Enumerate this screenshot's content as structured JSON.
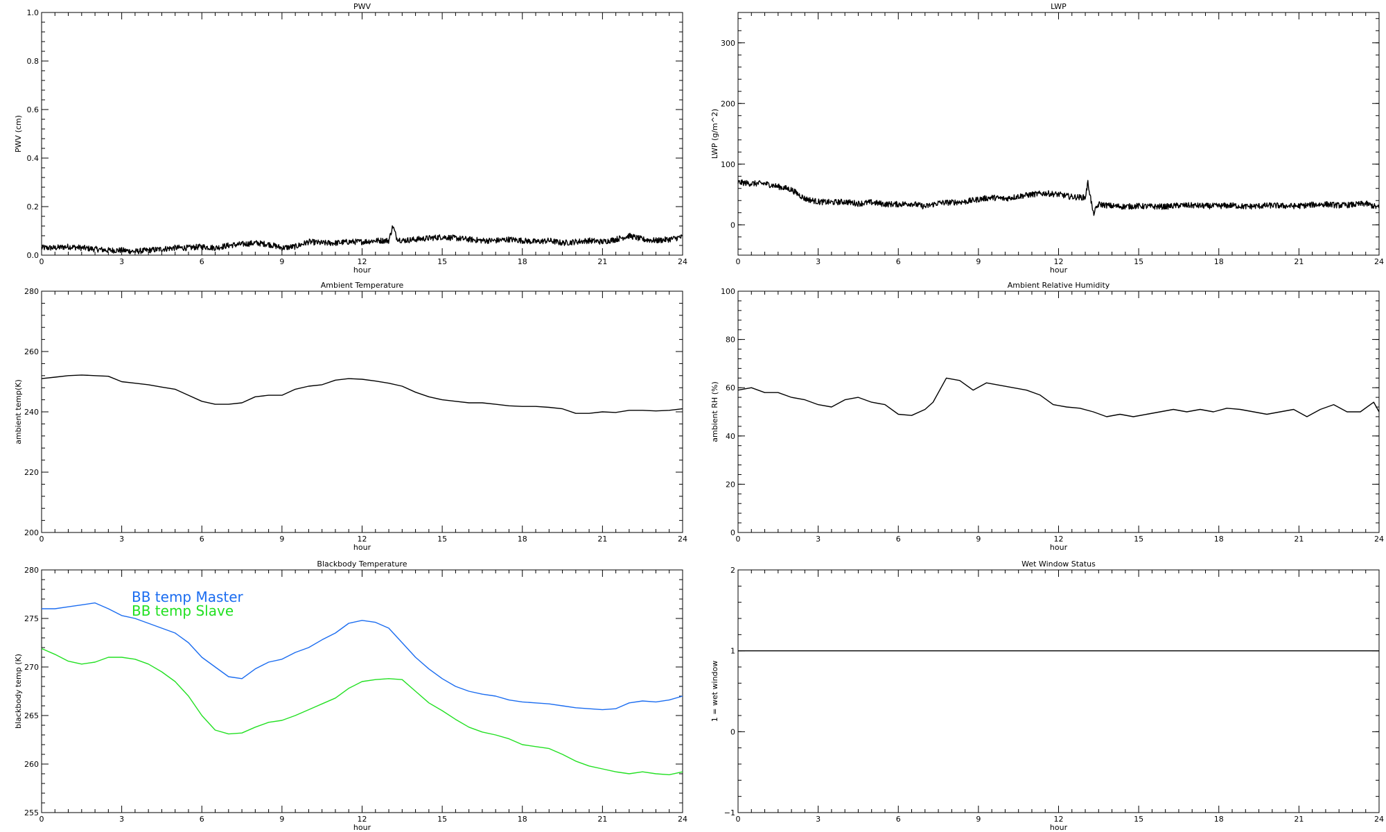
{
  "chart_data": [
    {
      "id": "pwv",
      "type": "line",
      "title": "PWV",
      "xlabel": "hour",
      "ylabel": "PWV (cm)",
      "xlim": [
        0,
        24
      ],
      "ylim": [
        0,
        1
      ],
      "xticks": [
        "0",
        "3",
        "6",
        "9",
        "12",
        "15",
        "18",
        "21",
        "24"
      ],
      "yticks": [
        "0.0",
        "0.2",
        "0.4",
        "0.6",
        "0.8",
        "1.0"
      ],
      "series": [
        {
          "color": "#000000",
          "noisy": true,
          "x": [
            0,
            0.5,
            1,
            1.5,
            2,
            2.5,
            3,
            3.5,
            4,
            4.5,
            5,
            5.5,
            6,
            6.5,
            7,
            7.5,
            8,
            8.5,
            9,
            9.5,
            10,
            10.5,
            11,
            11.5,
            12,
            12.5,
            13,
            13.15,
            13.3,
            13.5,
            14,
            14.5,
            15,
            15.5,
            16,
            16.5,
            17,
            17.5,
            18,
            18.5,
            19,
            19.5,
            20,
            20.5,
            21,
            21.5,
            22,
            22.5,
            23,
            23.5,
            24
          ],
          "y": [
            0.03,
            0.03,
            0.035,
            0.03,
            0.025,
            0.02,
            0.02,
            0.015,
            0.02,
            0.025,
            0.03,
            0.03,
            0.035,
            0.03,
            0.04,
            0.045,
            0.05,
            0.045,
            0.03,
            0.035,
            0.055,
            0.05,
            0.05,
            0.055,
            0.055,
            0.06,
            0.06,
            0.12,
            0.07,
            0.06,
            0.065,
            0.07,
            0.075,
            0.07,
            0.065,
            0.06,
            0.06,
            0.065,
            0.06,
            0.055,
            0.06,
            0.05,
            0.055,
            0.06,
            0.055,
            0.065,
            0.08,
            0.065,
            0.06,
            0.065,
            0.075
          ]
        }
      ]
    },
    {
      "id": "lwp",
      "type": "line",
      "title": "LWP",
      "xlabel": "hour",
      "ylabel": "LWP (g/m^2)",
      "xlim": [
        0,
        24
      ],
      "ylim": [
        -50,
        350
      ],
      "xticks": [
        "0",
        "3",
        "6",
        "9",
        "12",
        "15",
        "18",
        "21",
        "24"
      ],
      "yticks": [
        "0",
        "100",
        "200",
        "300"
      ],
      "series": [
        {
          "color": "#000000",
          "noisy": true,
          "x": [
            0,
            0.5,
            1,
            1.5,
            2,
            2.5,
            3,
            3.5,
            4,
            4.5,
            5,
            5.5,
            6,
            6.5,
            7,
            7.5,
            8,
            8.5,
            9,
            9.5,
            10,
            10.5,
            11,
            11.5,
            12,
            12.5,
            13,
            13.1,
            13.3,
            13.5,
            14,
            14.5,
            15,
            15.5,
            16,
            16.5,
            17,
            17.5,
            18,
            18.5,
            19,
            19.5,
            20,
            20.5,
            21,
            21.5,
            22,
            22.5,
            23,
            23.5,
            24
          ],
          "y": [
            70,
            68,
            68,
            63,
            58,
            43,
            38,
            37,
            38,
            35,
            37,
            34,
            34,
            35,
            30,
            36,
            37,
            38,
            42,
            45,
            43,
            47,
            50,
            52,
            50,
            46,
            45,
            70,
            18,
            34,
            31,
            30,
            31,
            30,
            30,
            32,
            32,
            31,
            31,
            32,
            30,
            31,
            32,
            31,
            31,
            33,
            34,
            32,
            33,
            35,
            28
          ]
        }
      ]
    },
    {
      "id": "tamb",
      "type": "line",
      "title": "Ambient Temperature",
      "xlabel": "hour",
      "ylabel": "ambient temp(K)",
      "xlim": [
        0,
        24
      ],
      "ylim": [
        200,
        280
      ],
      "xticks": [
        "0",
        "3",
        "6",
        "9",
        "12",
        "15",
        "18",
        "21",
        "24"
      ],
      "yticks": [
        "200",
        "220",
        "240",
        "260",
        "280"
      ],
      "series": [
        {
          "color": "#000000",
          "noisy": false,
          "x": [
            0,
            0.5,
            1,
            1.5,
            2,
            2.5,
            3,
            3.5,
            4,
            4.5,
            5,
            5.5,
            6,
            6.5,
            7,
            7.5,
            8,
            8.5,
            9,
            9.5,
            10,
            10.5,
            11,
            11.5,
            12,
            12.5,
            13,
            13.5,
            14,
            14.5,
            15,
            15.5,
            16,
            16.5,
            17,
            17.5,
            18,
            18.5,
            19,
            19.5,
            20,
            20.5,
            21,
            21.5,
            22,
            22.5,
            23,
            23.5,
            24
          ],
          "y": [
            251,
            251.5,
            252,
            252.2,
            252,
            251.8,
            250,
            249.5,
            249,
            248.2,
            247.5,
            245.5,
            243.5,
            242.5,
            242.5,
            243,
            245,
            245.5,
            245.5,
            247.5,
            248.5,
            249,
            250.5,
            251,
            250.8,
            250.2,
            249.5,
            248.5,
            246.5,
            245,
            244,
            243.5,
            243,
            243,
            242.5,
            242,
            241.8,
            241.8,
            241.5,
            241,
            239.5,
            239.5,
            240,
            239.8,
            240.5,
            240.5,
            240.3,
            240.5,
            241
          ]
        }
      ]
    },
    {
      "id": "rh",
      "type": "line",
      "title": "Ambient Relative Humidity",
      "xlabel": "hour",
      "ylabel": "ambient RH (%)",
      "xlim": [
        0,
        24
      ],
      "ylim": [
        0,
        100
      ],
      "xticks": [
        "0",
        "3",
        "6",
        "9",
        "12",
        "15",
        "18",
        "21",
        "24"
      ],
      "yticks": [
        "0",
        "20",
        "40",
        "60",
        "80",
        "100"
      ],
      "series": [
        {
          "color": "#000000",
          "noisy": false,
          "x": [
            0,
            0.5,
            1,
            1.5,
            2,
            2.5,
            3,
            3.5,
            4,
            4.5,
            5,
            5.5,
            6,
            6.5,
            7,
            7.3,
            7.8,
            8.3,
            8.8,
            9.3,
            9.8,
            10.3,
            10.8,
            11.3,
            11.8,
            12.3,
            12.8,
            13.3,
            13.8,
            14.3,
            14.8,
            15.3,
            15.8,
            16.3,
            16.8,
            17.3,
            17.8,
            18.3,
            18.8,
            19.3,
            19.8,
            20.3,
            20.8,
            21.3,
            21.8,
            22.3,
            22.8,
            23.3,
            23.8,
            24
          ],
          "y": [
            59,
            60,
            58,
            58,
            56,
            55,
            53,
            52,
            55,
            56,
            54,
            53,
            49,
            48.5,
            51,
            54,
            64,
            63,
            59,
            62,
            61,
            60,
            59,
            57,
            53,
            52,
            51.5,
            50,
            48,
            49,
            48,
            49,
            50,
            51,
            50,
            51,
            50,
            51.5,
            51,
            50,
            49,
            50,
            51,
            48,
            51,
            53,
            50,
            50,
            54,
            50
          ]
        }
      ]
    },
    {
      "id": "bb",
      "type": "line",
      "title": "Blackbody Temperature",
      "xlabel": "hour",
      "ylabel": "blackbody temp (K)",
      "xlim": [
        0,
        24
      ],
      "ylim": [
        255,
        280
      ],
      "xticks": [
        "0",
        "3",
        "6",
        "9",
        "12",
        "15",
        "18",
        "21",
        "24"
      ],
      "yticks": [
        "255",
        "260",
        "265",
        "270",
        "275",
        "280"
      ],
      "series": [
        {
          "name": "BB temp Master",
          "color": "#1a6cf0",
          "noisy": false,
          "x": [
            0,
            0.5,
            1,
            1.5,
            2,
            2.5,
            3,
            3.5,
            4,
            4.5,
            5,
            5.5,
            6,
            6.5,
            7,
            7.5,
            8,
            8.5,
            9,
            9.5,
            10,
            10.5,
            11,
            11.5,
            12,
            12.5,
            13,
            13.5,
            14,
            14.5,
            15,
            15.5,
            16,
            16.5,
            17,
            17.5,
            18,
            18.5,
            19,
            19.5,
            20,
            20.5,
            21,
            21.5,
            22,
            22.5,
            23,
            23.5,
            24
          ],
          "y": [
            276,
            276,
            276.2,
            276.4,
            276.6,
            276,
            275.3,
            275,
            274.5,
            274,
            273.5,
            272.5,
            271,
            270,
            269,
            268.8,
            269.8,
            270.5,
            270.8,
            271.5,
            272,
            272.8,
            273.5,
            274.5,
            274.8,
            274.6,
            274,
            272.5,
            271,
            269.8,
            268.8,
            268,
            267.5,
            267.2,
            267,
            266.6,
            266.4,
            266.3,
            266.2,
            266,
            265.8,
            265.7,
            265.6,
            265.7,
            266.3,
            266.5,
            266.4,
            266.6,
            267
          ]
        },
        {
          "name": "BB temp Slave",
          "color": "#22e022",
          "noisy": false,
          "x": [
            0,
            0.5,
            1,
            1.5,
            2,
            2.5,
            3,
            3.5,
            4,
            4.5,
            5,
            5.5,
            6,
            6.5,
            7,
            7.5,
            8,
            8.5,
            9,
            9.5,
            10,
            10.5,
            11,
            11.5,
            12,
            12.5,
            13,
            13.5,
            14,
            14.5,
            15,
            15.5,
            16,
            16.5,
            17,
            17.5,
            18,
            18.5,
            19,
            19.5,
            20,
            20.5,
            21,
            21.5,
            22,
            22.5,
            23,
            23.5,
            24
          ],
          "y": [
            271.9,
            271.3,
            270.6,
            270.3,
            270.5,
            271,
            271,
            270.8,
            270.3,
            269.5,
            268.5,
            267,
            265,
            263.5,
            263.1,
            263.2,
            263.8,
            264.3,
            264.5,
            265,
            265.6,
            266.2,
            266.8,
            267.8,
            268.5,
            268.7,
            268.8,
            268.7,
            267.5,
            266.3,
            265.5,
            264.6,
            263.8,
            263.3,
            263,
            262.6,
            262,
            261.8,
            261.6,
            261,
            260.3,
            259.8,
            259.5,
            259.2,
            259,
            259.2,
            259,
            258.9,
            259.2
          ]
        }
      ]
    },
    {
      "id": "wet",
      "type": "line",
      "title": "Wet Window Status",
      "xlabel": "hour",
      "ylabel": "1 = wet window",
      "xlim": [
        0,
        24
      ],
      "ylim": [
        -1,
        2
      ],
      "xticks": [
        "0",
        "3",
        "6",
        "9",
        "12",
        "15",
        "18",
        "21",
        "24"
      ],
      "yticks": [
        "−1",
        "0",
        "1",
        "2"
      ],
      "series": [
        {
          "color": "#000000",
          "noisy": false,
          "x": [
            0,
            24
          ],
          "y": [
            1,
            1
          ]
        }
      ]
    }
  ]
}
